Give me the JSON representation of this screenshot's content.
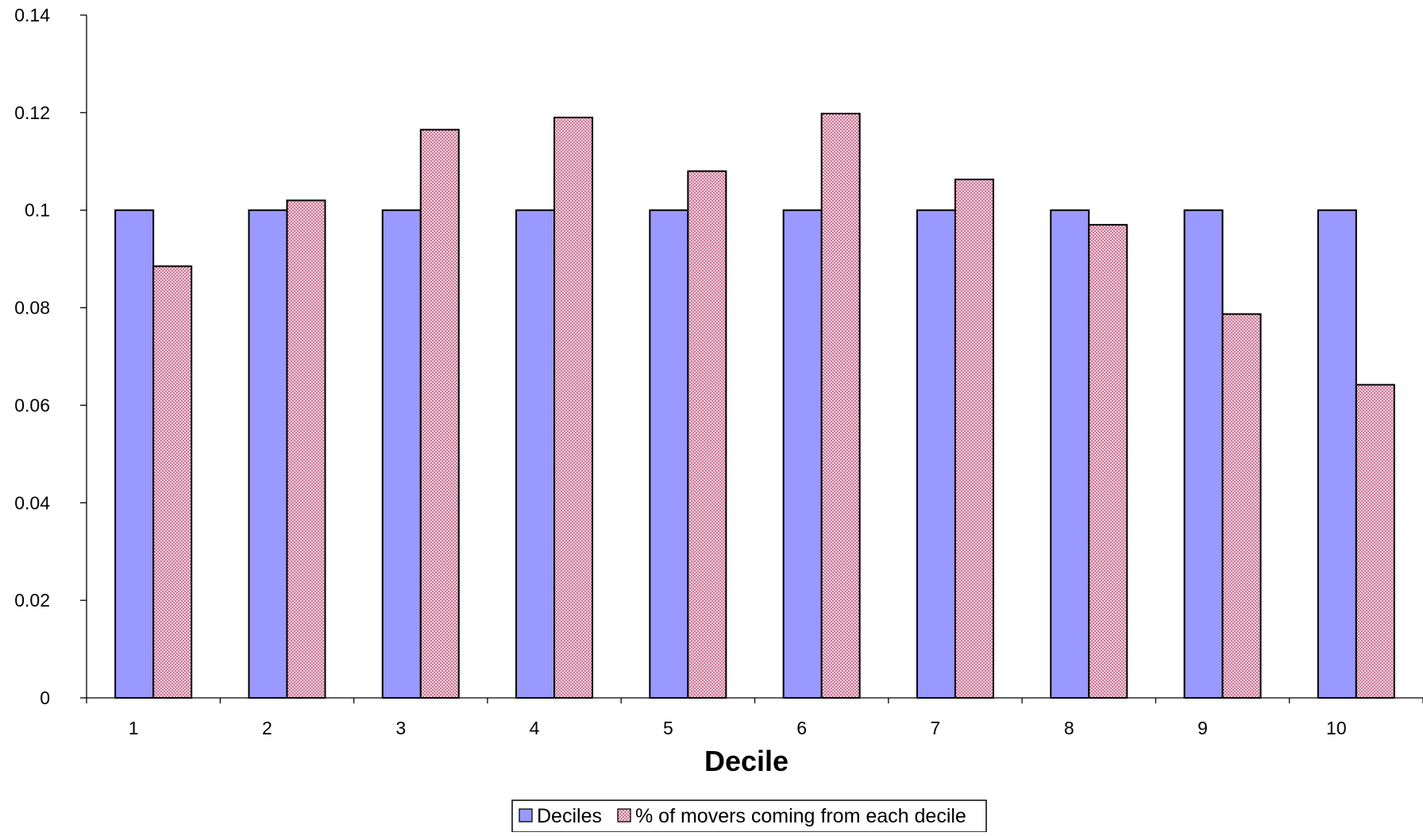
{
  "chart_data": {
    "type": "bar",
    "title": "",
    "xlabel": "Decile",
    "ylabel": "",
    "categories": [
      "1",
      "2",
      "3",
      "4",
      "5",
      "6",
      "7",
      "8",
      "9",
      "10"
    ],
    "series": [
      {
        "name": "Deciles",
        "values": [
          0.1,
          0.1,
          0.1,
          0.1,
          0.1,
          0.1,
          0.1,
          0.1,
          0.1,
          0.1
        ],
        "color": "#9999FF",
        "pattern": "solid"
      },
      {
        "name": "% of movers coming from each decile",
        "values": [
          0.0885,
          0.102,
          0.1165,
          0.119,
          0.108,
          0.1198,
          0.1063,
          0.097,
          0.0787,
          0.0642
        ],
        "color": "#F4D4DA",
        "pattern": "dotted",
        "dot_color": "#B0306A"
      }
    ],
    "ylim": [
      0,
      0.14
    ],
    "yticks": [
      "0",
      "0.02",
      "0.04",
      "0.06",
      "0.08",
      "0.1",
      "0.12",
      "0.14"
    ],
    "grid": false,
    "legend": "bottom-center"
  }
}
